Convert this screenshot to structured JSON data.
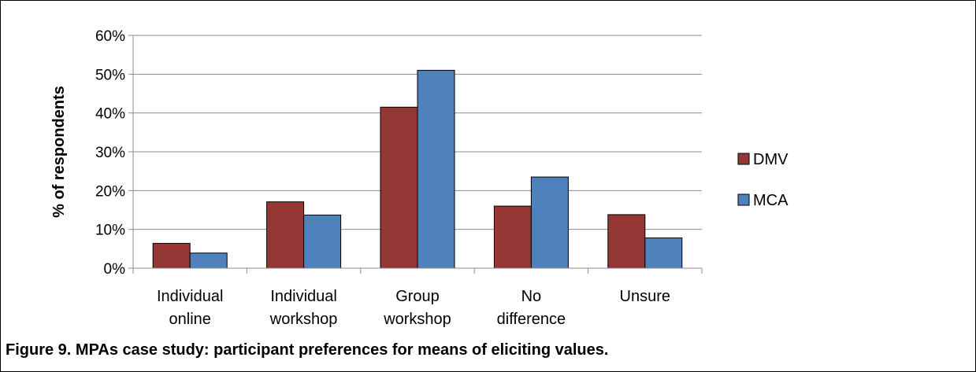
{
  "caption": "Figure 9. MPAs case study: participant preferences for means of eliciting values.",
  "chart_data": {
    "type": "bar",
    "title": "",
    "ylabel": "% of respondents",
    "xlabel": "",
    "ylim": [
      0,
      60
    ],
    "yticks": [
      "0%",
      "10%",
      "20%",
      "30%",
      "40%",
      "50%",
      "60%"
    ],
    "categories": [
      [
        "Individual",
        "online"
      ],
      [
        "Individual",
        "workshop"
      ],
      [
        "Group",
        "workshop"
      ],
      [
        "No",
        "difference"
      ],
      [
        "Unsure"
      ]
    ],
    "series": [
      {
        "name": "DMV",
        "color": "#953735",
        "values": [
          6.4,
          17.1,
          41.5,
          16.0,
          13.8
        ]
      },
      {
        "name": "MCA",
        "color": "#4F81BD",
        "values": [
          3.9,
          13.7,
          51.0,
          23.5,
          7.8
        ]
      }
    ],
    "grid": true,
    "legend": "right"
  }
}
